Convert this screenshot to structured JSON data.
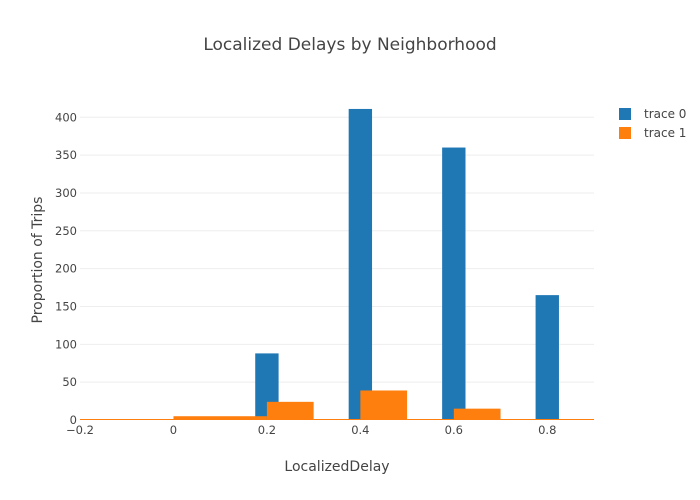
{
  "chart_data": {
    "type": "bar",
    "title": "Localized Delays by Neighborhood",
    "xlabel": "LocalizedDelay",
    "ylabel": "Proportion of Trips",
    "xlim": [
      -0.2,
      0.9
    ],
    "ylim": [
      0,
      440
    ],
    "x_ticks": [
      -0.2,
      0,
      0.2,
      0.4,
      0.6,
      0.8
    ],
    "x_tick_labels": [
      "−0.2",
      "0",
      "0.2",
      "0.4",
      "0.6",
      "0.8"
    ],
    "y_ticks": [
      0,
      50,
      100,
      150,
      200,
      250,
      300,
      350,
      400
    ],
    "y_tick_labels": [
      "0",
      "50",
      "100",
      "150",
      "200",
      "250",
      "300",
      "350",
      "400"
    ],
    "grid": true,
    "legend_position": "top-right",
    "series": [
      {
        "name": "trace 0",
        "color": "#1f77b4",
        "bars": [
          {
            "x0": 0.175,
            "x1": 0.225,
            "value": 88
          },
          {
            "x0": 0.375,
            "x1": 0.425,
            "value": 411
          },
          {
            "x0": 0.575,
            "x1": 0.625,
            "value": 360
          },
          {
            "x0": 0.775,
            "x1": 0.825,
            "value": 165
          }
        ]
      },
      {
        "name": "trace 1",
        "color": "#ff7f0e",
        "bars": [
          {
            "x0": -0.2,
            "x1": 0.0,
            "value": 1
          },
          {
            "x0": 0.0,
            "x1": 0.2,
            "value": 5
          },
          {
            "x0": 0.2,
            "x1": 0.3,
            "value": 24
          },
          {
            "x0": 0.3,
            "x1": 0.4,
            "value": 1
          },
          {
            "x0": 0.4,
            "x1": 0.5,
            "value": 39
          },
          {
            "x0": 0.5,
            "x1": 0.6,
            "value": 1
          },
          {
            "x0": 0.6,
            "x1": 0.7,
            "value": 15
          },
          {
            "x0": 0.7,
            "x1": 0.9,
            "value": 1
          }
        ]
      }
    ]
  }
}
